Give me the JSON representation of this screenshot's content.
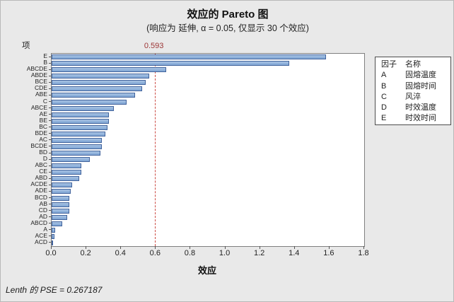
{
  "chart_data": {
    "type": "bar",
    "orientation": "horizontal",
    "title": "效应的 Pareto 图",
    "subtitle": "(响应为 延伸, α = 0.05, 仅显示 30 个效应)",
    "xlabel": "效应",
    "ylabel": "项",
    "xlim": [
      0,
      1.8
    ],
    "x_tick_labels": [
      "0.0",
      "0.2",
      "0.4",
      "0.6",
      "0.8",
      "1.0",
      "1.2",
      "1.4",
      "1.6",
      "1.8"
    ],
    "grid": false,
    "reference_line_value": 0.593,
    "reference_line_label": "0.593",
    "categories": [
      "E",
      "B",
      "ABCDE",
      "ABDE",
      "BCE",
      "CDE",
      "ABE",
      "C",
      "ABCE",
      "AE",
      "BE",
      "BC",
      "BDE",
      "AC",
      "BCDE",
      "BD",
      "D",
      "ABC",
      "CE",
      "ABD",
      "ACDE",
      "ADE",
      "BCD",
      "AB",
      "CD",
      "AD",
      "ABCD",
      "A",
      "ACE",
      "ACD"
    ],
    "values": [
      1.58,
      1.37,
      0.66,
      0.56,
      0.54,
      0.52,
      0.48,
      0.43,
      0.36,
      0.33,
      0.33,
      0.32,
      0.31,
      0.29,
      0.29,
      0.28,
      0.22,
      0.17,
      0.17,
      0.16,
      0.12,
      0.11,
      0.1,
      0.1,
      0.1,
      0.09,
      0.06,
      0.02,
      0.015,
      0.01
    ],
    "bar_fill_color": "#8aabd6",
    "bar_border_color": "#42639c",
    "reference_line_color": "#cc4b44",
    "reference_label_color": "#9c3535"
  },
  "legend": {
    "headers": [
      "因子",
      "名称"
    ],
    "rows": [
      [
        "A",
        "固熔温度"
      ],
      [
        "B",
        "固熔时间"
      ],
      [
        "C",
        "风淬"
      ],
      [
        "D",
        "时效温度"
      ],
      [
        "E",
        "时效时间"
      ]
    ]
  },
  "footer": {
    "text": "Lenth 的 PSE = 0.267187"
  }
}
